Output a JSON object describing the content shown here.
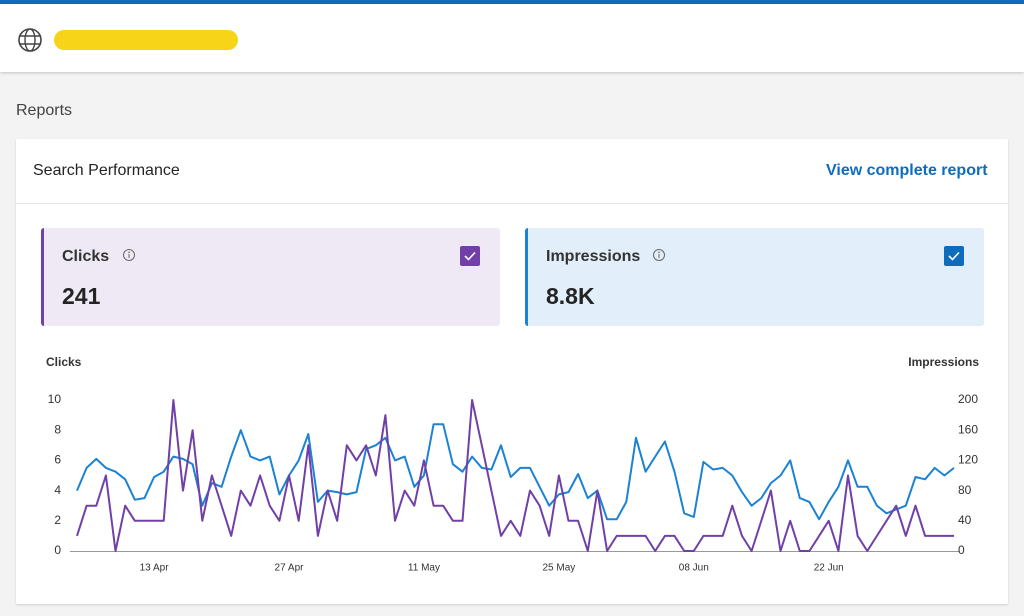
{
  "header": {
    "section": "Reports"
  },
  "card": {
    "title": "Search Performance",
    "link": "View complete report"
  },
  "metrics": [
    {
      "value": 241
    },
    {
      "value": "8.8K"
    }
  ],
  "chart_data": {
    "type": "line",
    "y_label": "Clicks",
    "y2_label": "Impressions",
    "categories": [
      null,
      null,
      null,
      null,
      null,
      null,
      null,
      null,
      "13 Apr",
      null,
      null,
      null,
      null,
      null,
      null,
      null,
      null,
      null,
      null,
      null,
      null,
      null,
      "27 Apr",
      null,
      null,
      null,
      null,
      null,
      null,
      null,
      null,
      null,
      null,
      null,
      null,
      null,
      "11 May",
      null,
      null,
      null,
      null,
      null,
      null,
      null,
      null,
      null,
      null,
      null,
      null,
      null,
      "25 May",
      null,
      null,
      null,
      null,
      null,
      null,
      null,
      null,
      null,
      null,
      null,
      null,
      null,
      "08 Jun",
      null,
      null,
      null,
      null,
      null,
      null,
      null,
      null,
      null,
      null,
      null,
      null,
      null,
      "22 Jun",
      null,
      null,
      null,
      null,
      null,
      null,
      null,
      null,
      null,
      null,
      null,
      null,
      null
    ],
    "series": [
      {
        "name": "Clicks",
        "color": "#7040a8",
        "values": [
          1,
          3,
          3,
          5,
          0,
          3,
          2,
          2,
          2,
          2,
          10,
          4,
          8,
          2,
          5,
          3,
          1,
          4,
          3,
          5,
          3,
          2,
          5,
          2,
          7,
          1,
          4,
          2,
          7,
          6,
          7,
          5,
          9,
          2,
          4,
          3,
          6,
          3,
          3,
          2,
          2,
          10,
          7,
          4,
          1,
          2,
          1,
          4,
          3,
          1,
          5,
          2,
          2,
          0,
          4,
          0,
          1,
          1,
          1,
          1,
          0,
          1,
          1,
          0,
          0,
          1,
          1,
          1,
          3,
          1,
          0,
          2,
          4,
          0,
          2,
          0,
          0,
          1,
          2,
          0,
          5,
          1,
          0,
          1,
          2,
          3,
          1,
          3,
          1,
          1,
          1,
          1
        ]
      },
      {
        "name": "Impressions",
        "color": "#1b82d4",
        "axis": "y2",
        "values": [
          80,
          110,
          122,
          110,
          105,
          95,
          68,
          70,
          98,
          105,
          125,
          122,
          115,
          60,
          90,
          85,
          125,
          160,
          125,
          120,
          125,
          75,
          100,
          120,
          155,
          65,
          80,
          78,
          75,
          78,
          135,
          140,
          150,
          120,
          125,
          85,
          100,
          168,
          168,
          115,
          105,
          125,
          110,
          108,
          140,
          98,
          110,
          110,
          85,
          60,
          75,
          78,
          102,
          70,
          80,
          42,
          42,
          65,
          150,
          105,
          125,
          145,
          105,
          50,
          45,
          118,
          108,
          110,
          100,
          78,
          60,
          70,
          90,
          100,
          120,
          70,
          65,
          42,
          65,
          85,
          120,
          85,
          85,
          60,
          50,
          55,
          60,
          98,
          95,
          110,
          100,
          110
        ]
      }
    ],
    "ylim": [
      0,
      10
    ],
    "yticks": [
      0,
      2,
      4,
      6,
      8,
      10
    ],
    "y2lim": [
      0,
      200
    ],
    "y2ticks": [
      0,
      40,
      80,
      120,
      160,
      200
    ],
    "grid": false
  }
}
